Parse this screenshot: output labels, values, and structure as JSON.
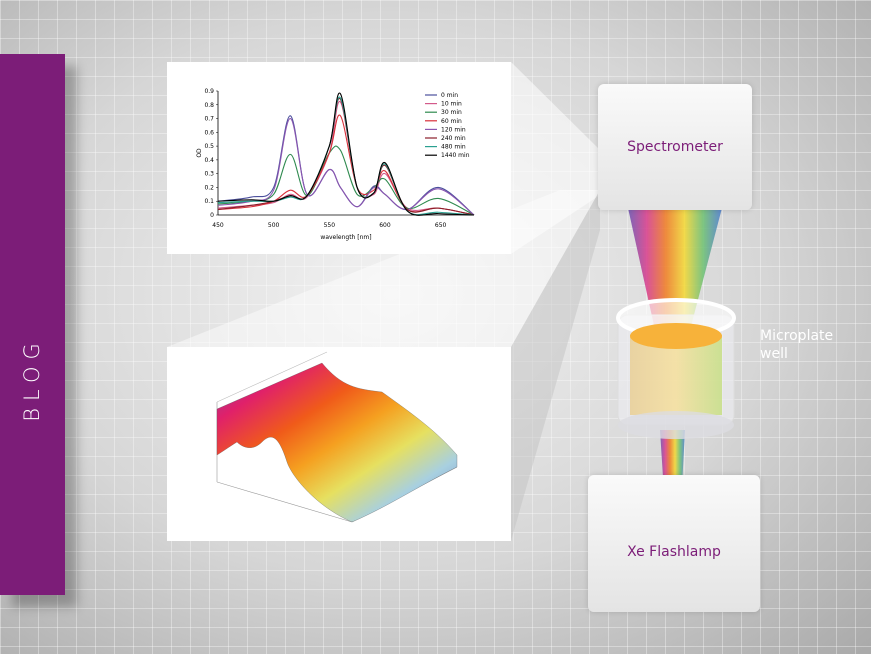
{
  "blog_label": "BLOG",
  "colors": {
    "brand": "#7c1d78"
  },
  "diagram": {
    "spectrometer": "Spectrometer",
    "well_line1": "Microplate",
    "well_line2": "well",
    "lamp": "Xe Flashlamp"
  },
  "chart_data": {
    "type": "line",
    "xlabel": "wavelength [nm]",
    "ylabel": "OD",
    "xlim": [
      450,
      680
    ],
    "ylim": [
      0,
      0.9
    ],
    "xticks": [
      450,
      500,
      550,
      600,
      650
    ],
    "yticks": [
      0,
      0.1,
      0.2,
      0.3,
      0.4,
      0.5,
      0.6,
      0.7,
      0.8,
      0.9
    ],
    "legend": "top-right",
    "grid": false,
    "x": [
      450,
      480,
      500,
      515,
      530,
      550,
      560,
      575,
      590,
      600,
      620,
      648,
      680
    ],
    "series": [
      {
        "name": "0 min",
        "color": "#4b4f9c",
        "values": [
          0.1,
          0.13,
          0.2,
          0.72,
          0.15,
          0.33,
          0.2,
          0.06,
          0.21,
          0.15,
          0.04,
          0.2,
          0
        ]
      },
      {
        "name": "10 min",
        "color": "#d35a8a",
        "values": [
          0.05,
          0.07,
          0.09,
          0.15,
          0.13,
          0.45,
          0.82,
          0.2,
          0.15,
          0.3,
          0.05,
          0.05,
          0
        ]
      },
      {
        "name": "30 min",
        "color": "#2f8a4f",
        "values": [
          0.08,
          0.1,
          0.15,
          0.44,
          0.14,
          0.45,
          0.47,
          0.15,
          0.2,
          0.26,
          0.05,
          0.12,
          0
        ]
      },
      {
        "name": "60 min",
        "color": "#d8303a",
        "values": [
          0.04,
          0.06,
          0.1,
          0.18,
          0.14,
          0.45,
          0.72,
          0.2,
          0.18,
          0.32,
          0.04,
          0.05,
          0
        ]
      },
      {
        "name": "120 min",
        "color": "#8a55b0",
        "values": [
          0.07,
          0.1,
          0.18,
          0.7,
          0.15,
          0.33,
          0.2,
          0.06,
          0.2,
          0.15,
          0.04,
          0.19,
          0
        ]
      },
      {
        "name": "240 min",
        "color": "#8a1e2a",
        "values": [
          0.04,
          0.07,
          0.1,
          0.14,
          0.14,
          0.5,
          0.84,
          0.2,
          0.16,
          0.36,
          0.04,
          0.05,
          0
        ]
      },
      {
        "name": "480 min",
        "color": "#2aa090",
        "values": [
          0.09,
          0.1,
          0.1,
          0.13,
          0.14,
          0.5,
          0.85,
          0.2,
          0.16,
          0.37,
          0.03,
          0.02,
          0
        ]
      },
      {
        "name": "1440 min",
        "color": "#000000",
        "values": [
          0.1,
          0.11,
          0.1,
          0.14,
          0.14,
          0.5,
          0.88,
          0.2,
          0.16,
          0.38,
          0.03,
          0.01,
          0
        ]
      }
    ]
  }
}
